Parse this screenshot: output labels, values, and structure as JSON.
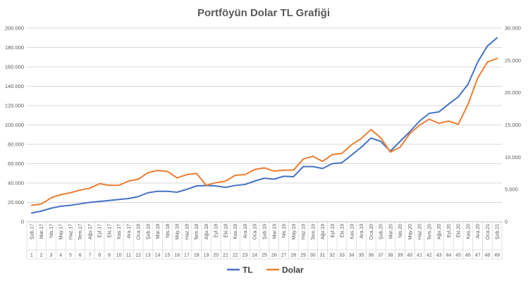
{
  "chart_data": {
    "type": "line",
    "title": "Portföyün Dolar TL Grafiği",
    "categories": [
      "Şub.17",
      "Mar.17",
      "Nis.17",
      "May.17",
      "Haz.17",
      "Tem.17",
      "Ağu.17",
      "Eyl.17",
      "Eki.17",
      "Kas.17",
      "Ara.17",
      "Oca.18",
      "Şub.18",
      "Mar.18",
      "Nis.18",
      "May.18",
      "Haz.18",
      "Tem.18",
      "Ağu.18",
      "Eyl.18",
      "Eki.18",
      "Kas.18",
      "Ara.18",
      "Oca.19",
      "Şub.19",
      "Mar.19",
      "Nis.19",
      "May.19",
      "Haz.19",
      "Tem.19",
      "Ağu.19",
      "Eyl.19",
      "Eki.19",
      "Kas.19",
      "Ara.19",
      "Oca.20",
      "Şub.20",
      "Mar.20",
      "Nis.20",
      "May.20",
      "Haz.20",
      "Tem.20",
      "Ağu.20",
      "Eyl.20",
      "Eki.20",
      "Kas.20",
      "Ara.20",
      "Oca.21",
      "Şub.21"
    ],
    "index_labels": [
      "1",
      "2",
      "3",
      "4",
      "5",
      "6",
      "7",
      "8",
      "9",
      "10",
      "11",
      "12",
      "13",
      "14",
      "15",
      "16",
      "17",
      "18",
      "19",
      "20",
      "21",
      "22",
      "23",
      "24",
      "25",
      "26",
      "27",
      "28",
      "29",
      "30",
      "31",
      "32",
      "33",
      "34",
      "35",
      "36",
      "37",
      "38",
      "39",
      "40",
      "41",
      "42",
      "43",
      "44",
      "45",
      "46",
      "47",
      "48",
      "49"
    ],
    "primary_axis": {
      "min": 0,
      "max": 200000,
      "step": 20000,
      "ticks": [
        "0",
        "20.000",
        "40.000",
        "60.000",
        "80.000",
        "100.000",
        "120.000",
        "140.000",
        "160.000",
        "180.000",
        "200.000"
      ]
    },
    "secondary_axis": {
      "min": 0,
      "max": 30000,
      "step": 5000,
      "ticks": [
        "0",
        "5.000",
        "10.000",
        "15.000",
        "20.000",
        "25.000",
        "30.000"
      ]
    },
    "grid": true,
    "legend_position": "bottom",
    "series": [
      {
        "name": "TL",
        "axis": "primary",
        "color": "#4472C4",
        "values": [
          9000,
          11000,
          14000,
          16000,
          17000,
          18500,
          20000,
          21000,
          22000,
          23000,
          24000,
          26000,
          30000,
          31500,
          31500,
          30500,
          33500,
          37000,
          37500,
          37000,
          35500,
          37500,
          38500,
          42000,
          45000,
          44000,
          47000,
          46500,
          57000,
          57000,
          55000,
          60000,
          61000,
          69000,
          77000,
          86500,
          83000,
          73000,
          83000,
          93000,
          104000,
          112000,
          113500,
          121500,
          129000,
          142000,
          165000,
          181500,
          190000
        ]
      },
      {
        "name": "Dolar",
        "axis": "secondary",
        "color": "#ED7D31",
        "values": [
          2550,
          2750,
          3700,
          4200,
          4500,
          4900,
          5200,
          5900,
          5650,
          5650,
          6300,
          6600,
          7600,
          7950,
          7800,
          6800,
          7300,
          7500,
          5650,
          6050,
          6300,
          7200,
          7300,
          8100,
          8350,
          7850,
          8000,
          8000,
          9700,
          10150,
          9350,
          10400,
          10600,
          11950,
          12900,
          14300,
          13000,
          10800,
          11550,
          13650,
          14950,
          15900,
          15250,
          15600,
          15100,
          18200,
          22250,
          24750,
          25300
        ]
      }
    ]
  }
}
